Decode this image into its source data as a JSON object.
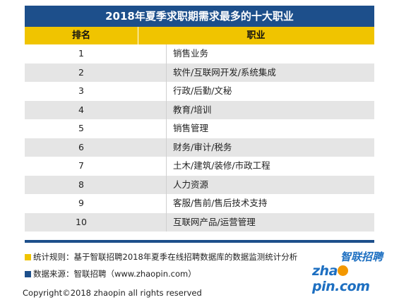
{
  "title": "2018年夏季求职期需求最多的十大职业",
  "header": {
    "rank": "排名",
    "job": "职业"
  },
  "rows": [
    {
      "rank": "1",
      "job": "销售业务"
    },
    {
      "rank": "2",
      "job": "软件/互联网开发/系统集成"
    },
    {
      "rank": "3",
      "job": "行政/后勤/文秘"
    },
    {
      "rank": "4",
      "job": "教育/培训"
    },
    {
      "rank": "5",
      "job": "销售管理"
    },
    {
      "rank": "6",
      "job": "财务/审计/税务"
    },
    {
      "rank": "7",
      "job": "土木/建筑/装修/市政工程"
    },
    {
      "rank": "8",
      "job": "人力资源"
    },
    {
      "rank": "9",
      "job": "客服/售前/售后技术支持"
    },
    {
      "rank": "10",
      "job": "互联网产品/运营管理"
    }
  ],
  "notes": {
    "rule": "统计规则：基于智联招聘2018年夏季在线招聘数据库的数据监测统计分析",
    "source": "数据来源：智联招聘（www.zhaopin.com）"
  },
  "logo": {
    "cn": "智联招聘",
    "en_pre": "zha",
    "en_post": "pin.com"
  },
  "copyright": "Copyright©2018 zhaopin all rights reserved",
  "colors": {
    "title_bg": "#1d4f8b",
    "header_bg": "#f0c400",
    "note_yellow": "#f0c400",
    "note_blue": "#1d4f8b",
    "logo_blue": "#1d6fc1",
    "logo_orange": "#f39800"
  }
}
